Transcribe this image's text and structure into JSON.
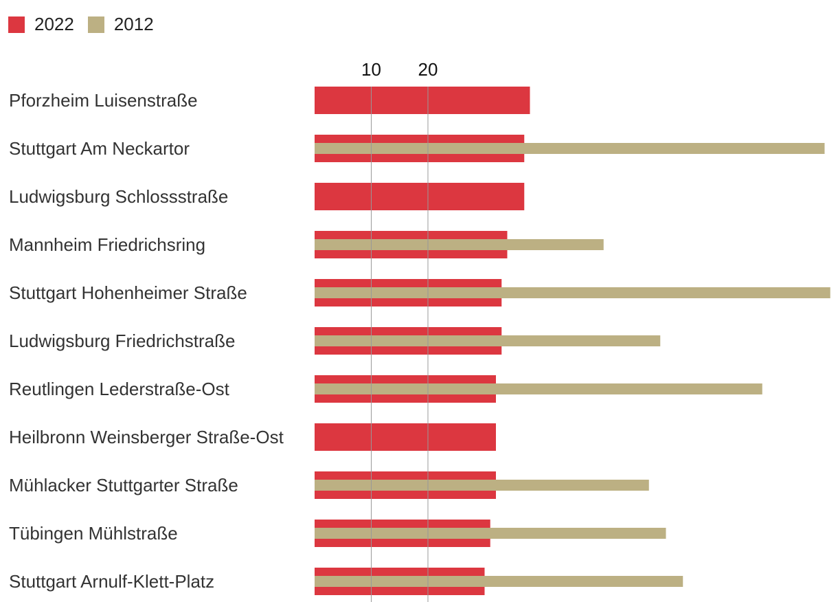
{
  "legend": {
    "series_2022": "2022",
    "series_2012": "2012"
  },
  "colors": {
    "series_2022": "#DC3740",
    "series_2012": "#BCB083",
    "gridline": "#999999",
    "label": "#333333",
    "tick": "#111111"
  },
  "chart_data": {
    "type": "bar",
    "orientation": "horizontal",
    "title": "",
    "xlabel": "",
    "ylabel": "",
    "xlim": [
      0,
      91
    ],
    "xticks": [
      10,
      20
    ],
    "grid": true,
    "legend_position": "top-left",
    "categories": [
      "Pforzheim Luisenstraße",
      "Stuttgart Am Neckartor",
      "Ludwigsburg Schlossstraße",
      "Mannheim Friedrichsring",
      "Stuttgart Hohenheimer Straße",
      "Ludwigsburg Friedrichstraße",
      "Reutlingen Lederstraße-Ost",
      "Heilbronn Weinsberger Straße-Ost",
      "Mühlacker Stuttgarter Straße",
      "Tübingen Mühlstraße",
      "Stuttgart Arnulf-Klett-Platz"
    ],
    "series": [
      {
        "name": "2022",
        "values": [
          38,
          37,
          37,
          34,
          33,
          33,
          32,
          32,
          32,
          31,
          30
        ]
      },
      {
        "name": "2012",
        "values": [
          null,
          90,
          null,
          51,
          91,
          61,
          79,
          null,
          59,
          62,
          65
        ]
      }
    ]
  }
}
